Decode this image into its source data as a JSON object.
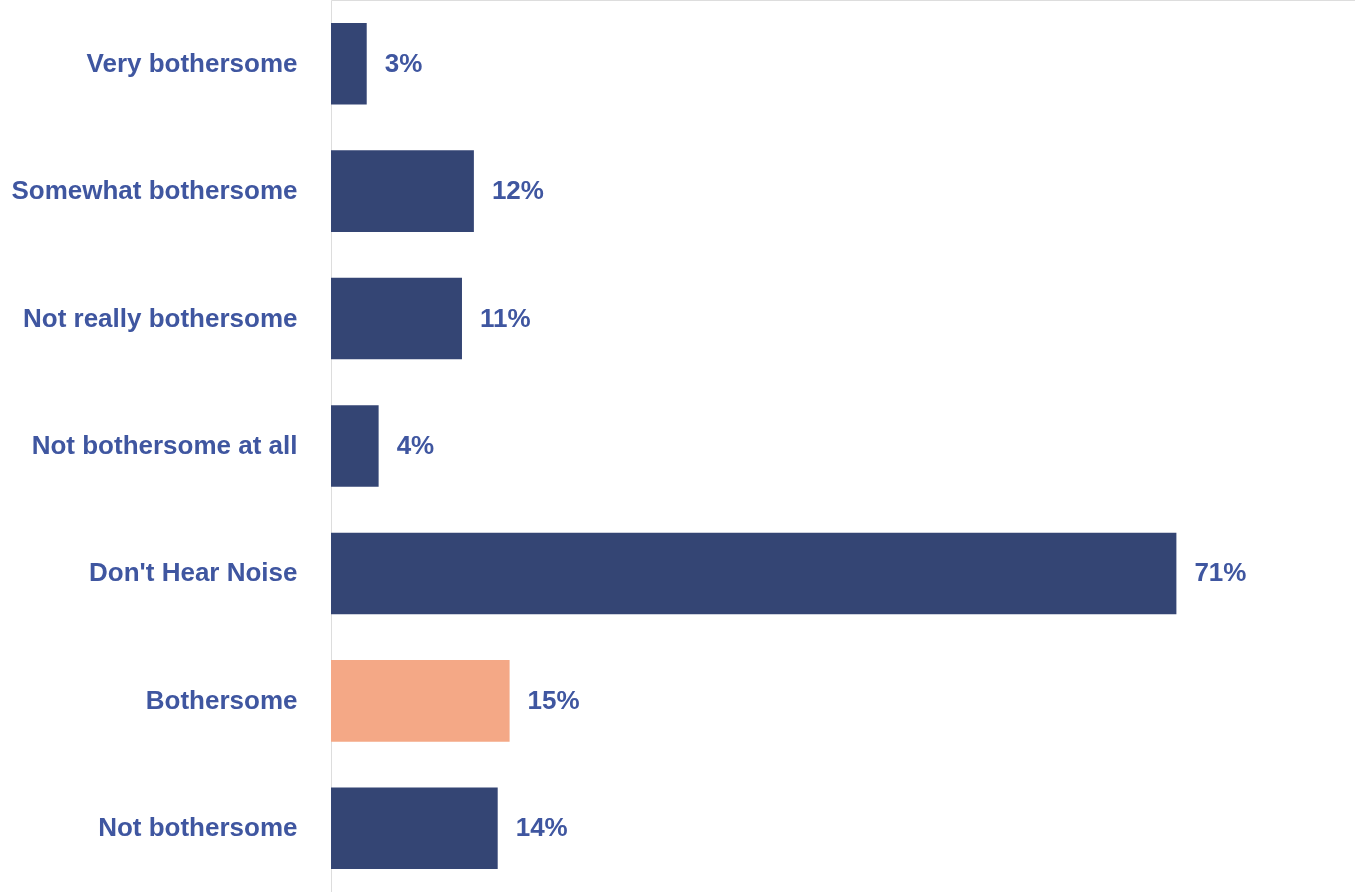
{
  "chart_data": {
    "type": "bar",
    "orientation": "horizontal",
    "categories": [
      "Very bothersome",
      "Somewhat bothersome",
      "Not really bothersome",
      "Not bothersome at all",
      "Don't Hear Noise",
      "Bothersome",
      "Not bothersome"
    ],
    "values": [
      3,
      12,
      11,
      4,
      71,
      15,
      14
    ],
    "colors": [
      "#344574",
      "#344574",
      "#344574",
      "#344574",
      "#344574",
      "#f4a886",
      "#344574"
    ],
    "value_labels": [
      "3%",
      "12%",
      "11%",
      "4%",
      "71%",
      "15%",
      "14%"
    ],
    "xlim": [
      0,
      86
    ],
    "tick_labels": "y"
  }
}
